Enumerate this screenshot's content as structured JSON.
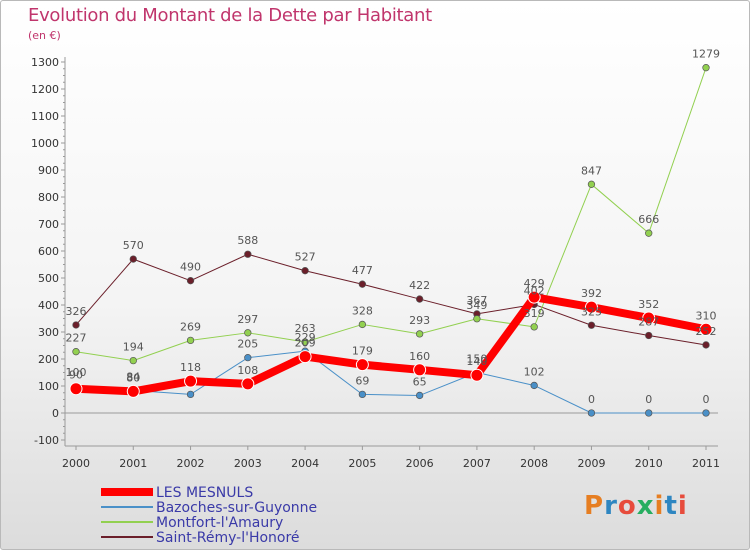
{
  "header": {
    "title": "Evolution du Montant de la Dette par Habitant",
    "subtitle": "(en €)"
  },
  "logo": {
    "text": "Proxiti",
    "colors": [
      "#e67e22",
      "#2e86c1",
      "#e74c3c",
      "#27ae60",
      "#e67e22",
      "#2e86c1",
      "#e74c3c"
    ]
  },
  "chart_data": {
    "type": "line",
    "title": "Evolution du Montant de la Dette par Habitant",
    "subtitle": "(en €)",
    "x": [
      "2000",
      "2001",
      "2002",
      "2003",
      "2004",
      "2005",
      "2006",
      "2007",
      "2008",
      "2009",
      "2010",
      "2011"
    ],
    "ylim": [
      -100,
      1300
    ],
    "yticks": [
      -100,
      0,
      100,
      200,
      300,
      400,
      500,
      600,
      700,
      800,
      900,
      1000,
      1100,
      1200,
      1300
    ],
    "grid": false,
    "legend_position": "bottom-left",
    "series": [
      {
        "name": "Saint-Rémy-l'Honoré",
        "color": "#6b1f2a",
        "width": 1,
        "values": [
          326,
          570,
          490,
          588,
          527,
          477,
          422,
          367,
          402,
          325,
          287,
          252
        ],
        "labels": [
          "326",
          "570",
          "490",
          "588",
          "527",
          "477",
          "422",
          "367",
          "402",
          "325",
          "287",
          "252"
        ]
      },
      {
        "name": "Montfort-l'Amaury",
        "color": "#92d050",
        "width": 1,
        "values": [
          227,
          194,
          269,
          297,
          263,
          328,
          293,
          349,
          319,
          847,
          666,
          1279
        ],
        "labels": [
          "227",
          "194",
          "269",
          "297",
          "263",
          "328",
          "293",
          "349",
          "319",
          "847",
          "666",
          "1279"
        ]
      },
      {
        "name": "Bazoches-sur-Guyonne",
        "color": "#4a90c8",
        "width": 1,
        "values": [
          100,
          84,
          69,
          205,
          229,
          69,
          65,
          150,
          102,
          0,
          0,
          0
        ],
        "labels": [
          "100",
          "84",
          "",
          "205",
          "229",
          "69",
          "65",
          "150",
          "102",
          "0",
          "0",
          "0"
        ]
      },
      {
        "name": "LES MESNULS",
        "color": "#ff0000",
        "width": 8,
        "values": [
          90,
          80,
          118,
          108,
          209,
          179,
          160,
          140,
          429,
          392,
          352,
          310
        ],
        "labels": [
          "90",
          "80",
          "118",
          "108",
          "209",
          "179",
          "160",
          "140",
          "429",
          "392",
          "352",
          "310"
        ]
      }
    ],
    "legend": [
      "LES MESNULS",
      "Bazoches-sur-Guyonne",
      "Montfort-l'Amaury",
      "Saint-Rémy-l'Honoré"
    ]
  }
}
